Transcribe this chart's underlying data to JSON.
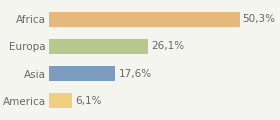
{
  "categories": [
    "America",
    "Asia",
    "Europa",
    "Africa"
  ],
  "values": [
    6.1,
    17.6,
    26.1,
    50.3
  ],
  "labels": [
    "6,1%",
    "17,6%",
    "26,1%",
    "50,3%"
  ],
  "colors": [
    "#f0d080",
    "#7b9bbf",
    "#b5c98e",
    "#e8b97e"
  ],
  "background_color": "#f5f5f0",
  "xlim": [
    0,
    60
  ],
  "bar_height": 0.55,
  "label_fontsize": 7.5,
  "tick_fontsize": 7.5,
  "label_color": "#666666"
}
